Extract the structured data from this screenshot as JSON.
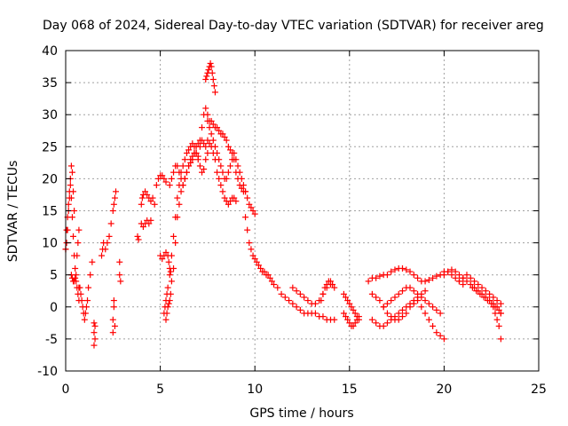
{
  "chart_data": {
    "type": "scatter",
    "title": "Day 068 of 2024, Sidereal Day-to-day VTEC variation (SDTVAR) for receiver areg",
    "xlabel": "GPS time / hours",
    "ylabel": "SDTVAR / TECUs",
    "xlim": [
      0,
      25
    ],
    "ylim": [
      -10,
      40
    ],
    "xticks": [
      0,
      5,
      10,
      15,
      20,
      25
    ],
    "yticks": [
      -10,
      -5,
      0,
      5,
      10,
      15,
      20,
      25,
      30,
      35,
      40
    ],
    "grid": true,
    "marker": "+",
    "color": "#ff0000",
    "series": [
      {
        "name": "SDTVAR",
        "x": [
          0.0,
          0.05,
          0.1,
          0.15,
          0.2,
          0.25,
          0.3,
          0.35,
          0.4,
          0.45,
          0.5,
          0.55,
          0.6,
          0.65,
          0.7,
          0.0,
          0.05,
          0.1,
          0.15,
          0.2,
          0.25,
          0.3,
          0.35,
          0.4,
          0.45,
          0.3,
          0.35,
          0.4,
          0.45,
          0.5,
          0.55,
          0.6,
          0.65,
          0.7,
          0.7,
          0.75,
          0.8,
          0.85,
          0.9,
          0.95,
          1.0,
          1.05,
          1.1,
          1.15,
          1.2,
          1.3,
          1.4,
          1.5,
          1.5,
          1.5,
          1.55,
          1.55,
          1.9,
          1.95,
          2.0,
          2.1,
          2.2,
          2.3,
          2.4,
          2.5,
          2.55,
          2.6,
          2.65,
          2.5,
          2.5,
          2.55,
          2.55,
          2.6,
          2.85,
          2.85,
          2.9,
          3.8,
          3.85,
          4.0,
          4.05,
          4.1,
          4.2,
          4.3,
          4.4,
          4.5,
          4.0,
          4.1,
          4.2,
          4.3,
          4.4,
          4.5,
          4.6,
          4.7,
          4.8,
          4.9,
          5.0,
          5.1,
          5.2,
          5.3,
          5.0,
          5.1,
          5.2,
          5.3,
          5.4,
          5.45,
          5.5,
          5.55,
          5.2,
          5.25,
          5.3,
          5.35,
          5.4,
          5.5,
          5.6,
          5.7,
          5.8,
          5.9,
          6.0,
          6.1,
          6.2,
          6.3,
          6.4,
          6.5,
          6.6,
          6.7,
          6.8,
          6.9,
          7.0,
          7.1,
          7.2,
          7.3,
          7.4,
          7.5,
          5.3,
          5.35,
          5.4,
          5.45,
          5.5,
          5.55,
          5.6,
          5.7,
          5.8,
          5.9,
          6.0,
          6.1,
          6.2,
          6.3,
          6.4,
          6.5,
          6.6,
          6.7,
          6.8,
          6.9,
          7.0,
          7.1,
          7.2,
          7.3,
          7.4,
          7.5,
          5.5,
          5.6,
          5.7,
          5.8,
          5.9,
          6.0,
          6.1,
          6.2,
          6.3,
          6.4,
          6.5,
          6.6,
          6.7,
          6.8,
          6.9,
          7.0,
          7.1,
          7.2,
          7.3,
          7.4,
          7.4,
          7.45,
          7.5,
          7.55,
          7.6,
          7.65,
          7.7,
          7.75,
          7.8,
          7.85,
          7.9,
          7.5,
          7.6,
          7.7,
          7.8,
          7.9,
          8.0,
          8.1,
          8.2,
          8.3,
          8.4,
          8.5,
          8.6,
          8.7,
          8.8,
          8.9,
          9.0,
          9.1,
          9.2,
          9.3,
          9.4,
          9.5,
          7.6,
          7.7,
          7.8,
          7.9,
          8.0,
          8.1,
          8.2,
          8.3,
          8.4,
          8.5,
          8.6,
          8.7,
          8.8,
          8.9,
          9.0,
          9.1,
          9.2,
          9.3,
          9.4,
          9.5,
          9.6,
          9.7,
          9.8,
          9.9,
          10.0,
          7.5,
          7.6,
          7.7,
          7.8,
          7.9,
          8.0,
          8.1,
          8.2,
          8.3,
          8.4,
          8.5,
          8.6,
          8.7,
          8.8,
          8.9,
          9.0,
          9.5,
          9.6,
          9.7,
          9.8,
          9.9,
          10.0,
          10.1,
          10.2,
          10.3,
          10.4,
          10.5,
          10.6,
          10.7,
          10.8,
          10.9,
          11.0,
          11.2,
          11.4,
          11.6,
          11.8,
          12.0,
          12.2,
          12.4,
          12.6,
          12.8,
          13.0,
          13.2,
          13.4,
          13.6,
          13.8,
          14.0,
          14.2,
          12.0,
          12.2,
          12.4,
          12.6,
          12.8,
          13.0,
          13.2,
          13.4,
          13.6,
          13.8,
          14.0,
          13.5,
          13.6,
          13.7,
          13.8,
          13.9,
          14.0,
          14.1,
          14.2,
          14.7,
          14.8,
          14.9,
          15.0,
          15.1,
          15.2,
          15.3,
          15.4,
          15.5,
          14.7,
          14.8,
          14.9,
          15.0,
          15.1,
          15.2,
          15.3,
          15.4,
          15.5,
          16.0,
          16.2,
          16.4,
          16.6,
          16.8,
          17.0,
          17.2,
          17.4,
          17.6,
          17.8,
          18.0,
          18.2,
          18.4,
          18.6,
          18.8,
          19.0,
          19.2,
          19.4,
          19.6,
          19.8,
          20.0,
          20.2,
          20.4,
          20.6,
          20.8,
          21.0,
          16.2,
          16.4,
          16.6,
          16.8,
          17.0,
          17.2,
          17.4,
          17.6,
          17.8,
          18.0,
          18.2,
          18.4,
          18.6,
          18.8,
          19.0,
          16.8,
          17.0,
          17.2,
          17.4,
          17.6,
          17.8,
          18.0,
          18.2,
          18.4,
          18.6,
          18.8,
          19.0,
          19.2,
          19.4,
          19.6,
          19.8,
          16.2,
          16.4,
          16.6,
          16.8,
          17.0,
          17.2,
          17.4,
          17.6,
          17.8,
          18.0,
          18.2,
          18.4,
          18.6,
          18.8,
          19.0,
          19.2,
          19.4,
          19.6,
          19.8,
          20.0,
          20.0,
          20.2,
          20.4,
          20.6,
          20.8,
          21.0,
          21.2,
          21.4,
          21.6,
          21.8,
          22.0,
          22.2,
          22.4,
          22.6,
          22.8,
          23.0,
          20.8,
          21.0,
          21.2,
          21.4,
          21.6,
          21.8,
          22.0,
          22.2,
          22.4,
          22.6,
          22.8,
          23.0,
          21.5,
          21.7,
          21.9,
          22.1,
          22.3,
          22.5,
          22.7,
          22.9,
          23.0,
          22.6,
          22.7,
          22.8,
          22.9,
          23.0
        ],
        "y": [
          9,
          12,
          14,
          16,
          18,
          19,
          17,
          14,
          11,
          8,
          6,
          4,
          3,
          2,
          1,
          9,
          10,
          12,
          15,
          17,
          20,
          22,
          21,
          18,
          15,
          5,
          4.5,
          4,
          4,
          4.5,
          5,
          8,
          10,
          12,
          3,
          3,
          2,
          1,
          0,
          -1,
          -2,
          -1,
          0,
          1,
          3,
          5,
          7,
          -2.5,
          -4,
          -6,
          -5,
          -3,
          8,
          9,
          10,
          9,
          10,
          11,
          13,
          15,
          16,
          17,
          18,
          -4,
          -2,
          0,
          1,
          -3,
          7,
          5,
          4,
          11,
          10.5,
          16,
          17,
          17.5,
          18,
          17.5,
          17,
          16.5,
          13,
          12.5,
          13,
          13.5,
          13,
          13.5,
          17,
          16,
          19,
          20,
          20.5,
          20.5,
          20,
          19.5,
          8,
          7.5,
          8,
          8.5,
          8,
          7,
          6,
          5.5,
          -1,
          0,
          1,
          2,
          3,
          5,
          8,
          11,
          14,
          17,
          19,
          21,
          22,
          23,
          24,
          24.5,
          25,
          25.5,
          25,
          24,
          23,
          25,
          28,
          30,
          31,
          30,
          -2,
          -1,
          0,
          0.5,
          1,
          2,
          4,
          6,
          10,
          14,
          16,
          18,
          19,
          20,
          21,
          22,
          22.5,
          23,
          24,
          25,
          25.5,
          26,
          26,
          25.5,
          25,
          24,
          19,
          20,
          21,
          22,
          22,
          21,
          20,
          19,
          20,
          21,
          22,
          23,
          23.5,
          24,
          24,
          23.5,
          22,
          21,
          21.5,
          23,
          35.5,
          36,
          36.5,
          37,
          37.5,
          38,
          37.5,
          36.5,
          35.5,
          34.5,
          33.5,
          29,
          28,
          27,
          26,
          25,
          24,
          23,
          22,
          21,
          20,
          20,
          21,
          22,
          23,
          24,
          23,
          22,
          21,
          20,
          19,
          18,
          29,
          29,
          28.5,
          28,
          28,
          27.5,
          27,
          27,
          26.5,
          26,
          25,
          24.5,
          24,
          23,
          21,
          20,
          19,
          18.5,
          18,
          18,
          17,
          16,
          15.5,
          15,
          14.5,
          26,
          25.5,
          25,
          24,
          23,
          21,
          20,
          19,
          18,
          17,
          16.5,
          16,
          16.5,
          17,
          17,
          16.5,
          14,
          12,
          10,
          9,
          8,
          7.5,
          7,
          6.5,
          6,
          5.5,
          5.5,
          5,
          5,
          4.5,
          4,
          3.5,
          3,
          2,
          1.5,
          1,
          0.5,
          0,
          -0.5,
          -1,
          -1,
          -1,
          -1,
          -1.5,
          -1.5,
          -2,
          -2,
          -2,
          3,
          2.5,
          2,
          1.5,
          1,
          0.5,
          0.5,
          1,
          2,
          3,
          3.5,
          1,
          2,
          3,
          3.5,
          4,
          4,
          3.5,
          3,
          2,
          1.5,
          1,
          0.5,
          0,
          -0.5,
          -1,
          -1.5,
          -2,
          -1,
          -1.5,
          -2,
          -2.5,
          -3,
          -3,
          -2.5,
          -2,
          -1.5,
          4,
          4.5,
          4.5,
          4.8,
          5,
          5,
          5.5,
          5.8,
          6,
          6,
          5.8,
          5.5,
          5,
          4.5,
          4,
          4,
          4.2,
          4.5,
          4.8,
          5,
          5.5,
          5.5,
          5,
          4.5,
          4,
          3.5,
          -2,
          -2.5,
          -3,
          -3,
          -2.5,
          -2,
          -1.5,
          -1,
          -0.5,
          0,
          0.5,
          1,
          1.5,
          2,
          2.5,
          0,
          0.5,
          1,
          1.5,
          2,
          2.5,
          3,
          3,
          2.5,
          2,
          1.5,
          1,
          0.5,
          0,
          -0.5,
          -1,
          2,
          1.5,
          1,
          0,
          -1,
          -1.5,
          -2,
          -2,
          -1.5,
          -1,
          0,
          0.5,
          1,
          0,
          -1,
          -2,
          -3,
          -4,
          -4.5,
          -5,
          5,
          5.5,
          5.8,
          5.5,
          5,
          4.5,
          4,
          3.5,
          3,
          2.5,
          2,
          1.5,
          1,
          0.5,
          0,
          -1,
          4,
          4.5,
          5,
          4.5,
          4,
          3.5,
          3,
          2.5,
          2,
          1.5,
          1,
          0.5,
          3,
          2.5,
          2,
          1.5,
          1,
          0.5,
          0,
          -0.5,
          -1,
          0,
          -1,
          -2,
          -3,
          -5
        ]
      }
    ]
  }
}
